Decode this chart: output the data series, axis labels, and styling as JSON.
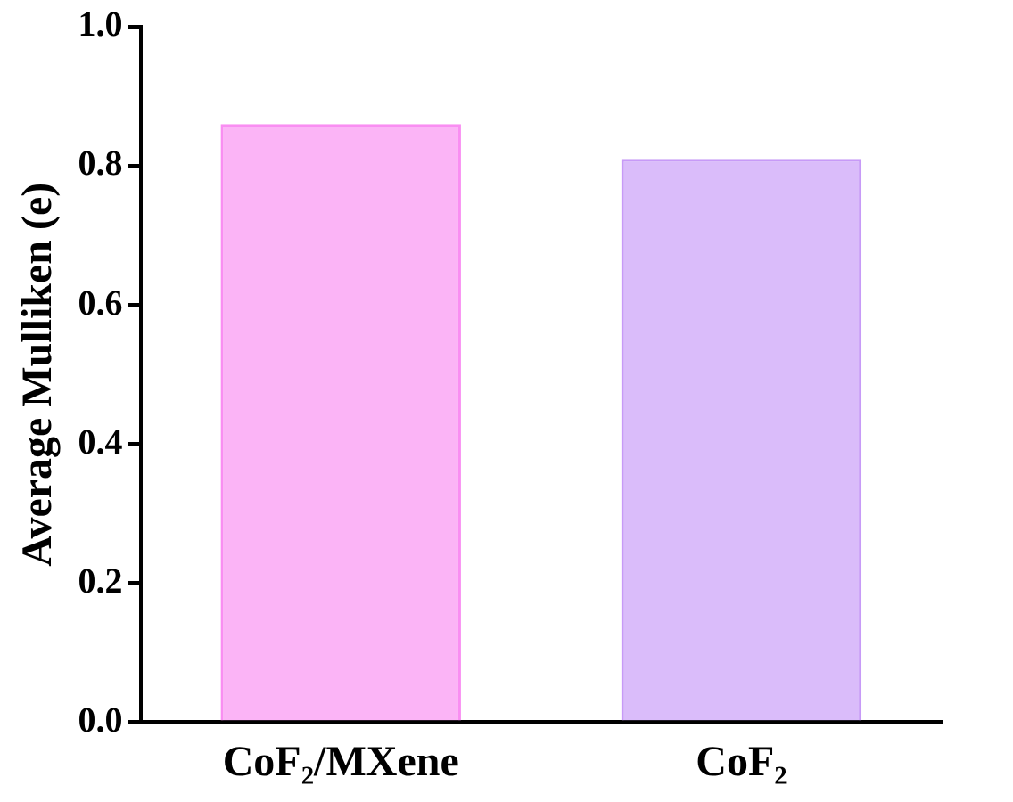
{
  "chart_data": {
    "type": "bar",
    "ylabel": "Average Mulliken (e)",
    "categories": [
      "CoF₂/MXene",
      "CoF₂"
    ],
    "values": [
      0.86,
      0.81
    ],
    "colors": [
      "#f98ef2",
      "#c79af7"
    ],
    "ylim": [
      0,
      1.0
    ],
    "yticks": [
      {
        "value": 0,
        "label": "0.0"
      },
      {
        "value": 0.2,
        "label": "0.2"
      },
      {
        "value": 0.4,
        "label": "0.4"
      },
      {
        "value": 0.6,
        "label": "0.6"
      },
      {
        "value": 0.8,
        "label": "0.8"
      },
      {
        "value": 1.0,
        "label": "1.0"
      }
    ],
    "grid": false,
    "legend": false
  }
}
